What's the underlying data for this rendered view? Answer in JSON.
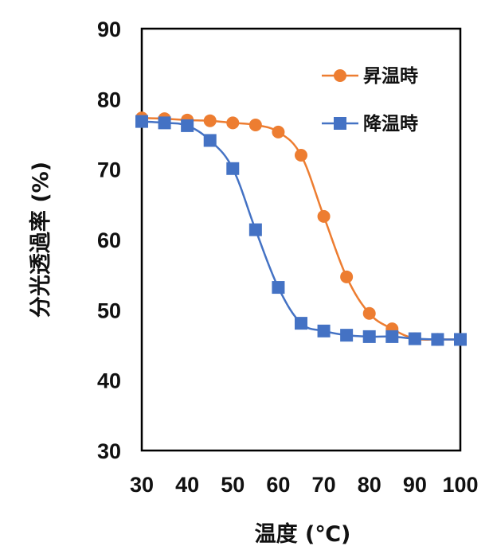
{
  "chart_data": {
    "type": "line",
    "xlabel": "温度 (℃)",
    "ylabel": "分光透過率 (%)",
    "xlim": [
      30,
      100
    ],
    "ylim": [
      30,
      90
    ],
    "x_ticks": [
      30,
      40,
      50,
      60,
      70,
      80,
      90,
      100
    ],
    "y_ticks": [
      30,
      40,
      50,
      60,
      70,
      80,
      90
    ],
    "grid": false,
    "legend_position": "top-right",
    "series": [
      {
        "name": "昇温時",
        "color": "#ED7D31",
        "marker": "circle",
        "x": [
          30,
          35,
          40,
          45,
          50,
          55,
          60,
          65,
          70,
          75,
          80,
          85,
          90,
          95,
          100
        ],
        "y": [
          77.3,
          77.2,
          77.0,
          76.9,
          76.6,
          76.3,
          75.3,
          72.0,
          63.3,
          54.7,
          49.5,
          47.3,
          45.9,
          45.8,
          45.8
        ]
      },
      {
        "name": "降温時",
        "color": "#4472C4",
        "marker": "square",
        "x": [
          30,
          35,
          40,
          45,
          50,
          55,
          60,
          65,
          70,
          75,
          80,
          85,
          90,
          95,
          100
        ],
        "y": [
          76.8,
          76.6,
          76.2,
          74.1,
          70.1,
          61.4,
          53.2,
          48.1,
          47.0,
          46.4,
          46.2,
          46.2,
          45.9,
          45.8,
          45.8
        ]
      }
    ]
  }
}
